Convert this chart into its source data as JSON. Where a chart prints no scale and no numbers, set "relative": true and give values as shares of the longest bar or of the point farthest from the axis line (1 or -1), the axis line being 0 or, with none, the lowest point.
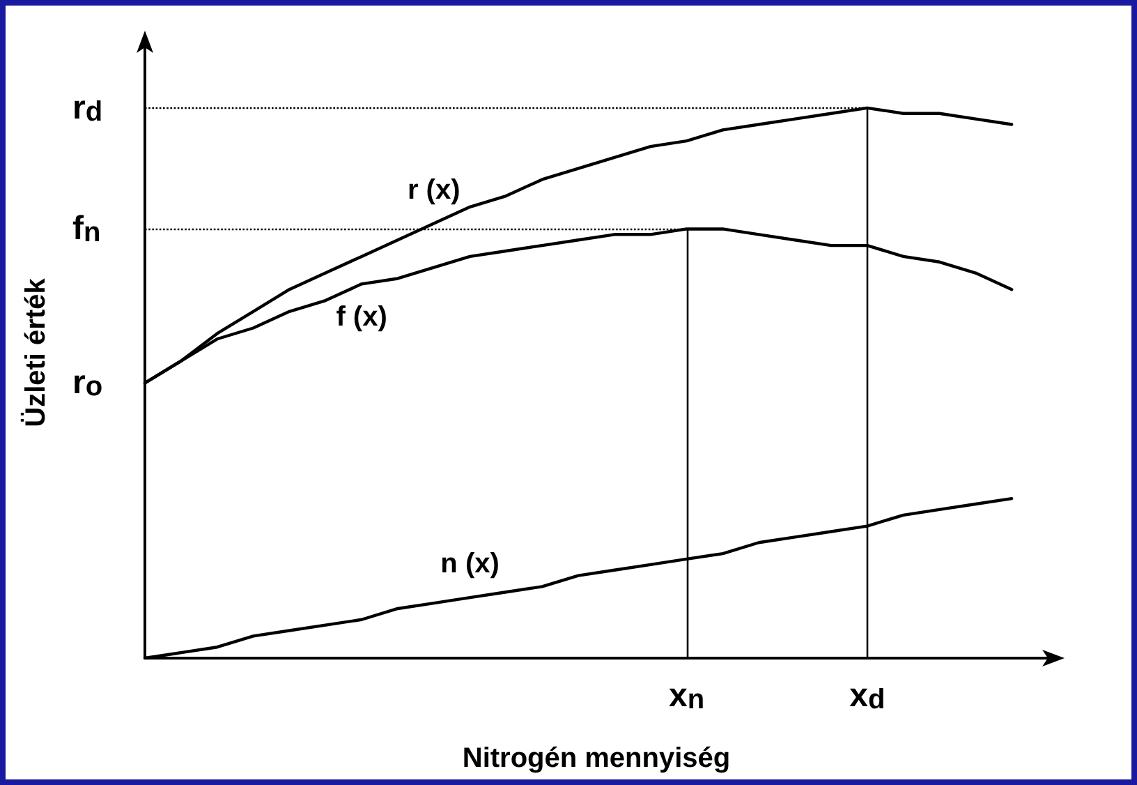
{
  "chart_data": {
    "type": "line",
    "relative": true,
    "xlabel": "Nitrogén mennyiség",
    "ylabel": "Üzleti érték",
    "categories": [
      null,
      null,
      null,
      null,
      null,
      null,
      null,
      null,
      null,
      null,
      null,
      null,
      null,
      null,
      null,
      "x$_{n}$",
      null,
      null,
      null,
      null,
      "x$_{d}$",
      null,
      null,
      null,
      null,
      null
    ],
    "series": [
      {
        "name": "r (x)",
        "color": "#000000",
        "values": [
          0.5,
          0.54,
          0.59,
          0.63,
          0.67,
          0.7,
          0.73,
          0.76,
          0.79,
          0.82,
          0.84,
          0.87,
          0.89,
          0.91,
          0.93,
          0.94,
          0.96,
          0.97,
          0.98,
          0.99,
          1,
          0.99,
          0.99,
          0.98,
          0.97,
          null
        ]
      },
      {
        "name": "f (x)",
        "color": "#000000",
        "values": [
          0.5,
          0.54,
          0.58,
          0.6,
          0.63,
          0.65,
          0.68,
          0.69,
          0.71,
          0.73,
          0.74,
          0.75,
          0.76,
          0.77,
          0.77,
          0.78,
          0.78,
          0.77,
          0.76,
          0.75,
          0.75,
          0.73,
          0.72,
          0.7,
          0.67,
          null
        ]
      },
      {
        "name": "n (x)",
        "color": "#000000",
        "values": [
          0,
          0.01,
          0.02,
          0.04,
          0.05,
          0.06,
          0.07,
          0.09,
          0.1,
          0.11,
          0.12,
          0.13,
          0.15,
          0.16,
          0.17,
          0.18,
          0.19,
          0.21,
          0.22,
          0.23,
          0.24,
          0.26,
          0.27,
          0.28,
          0.29,
          null
        ]
      }
    ],
    "ref_lines": [
      {
        "axis": "y",
        "value": 1,
        "label": "r$_{d}$",
        "line_style": "dotted"
      },
      {
        "axis": "y",
        "value": 0.78,
        "label": "f$_{n}$",
        "line_style": "dotted"
      },
      {
        "axis": "x",
        "value": "x$_{n}$",
        "line_style": "solid"
      },
      {
        "axis": "x",
        "value": "x$_{d}$",
        "line_style": "solid"
      }
    ],
    "annotations": [
      "r$_{o}$"
    ],
    "grid": false,
    "legend": false,
    "marker": "none",
    "line_style": "solid"
  }
}
